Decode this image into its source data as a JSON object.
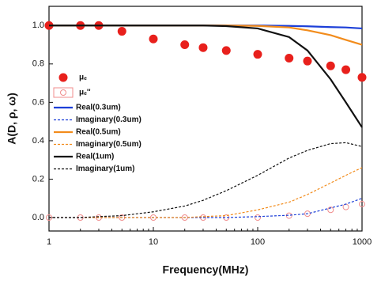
{
  "chart_data": {
    "type": "line",
    "x_label": "Frequency(MHz)",
    "y_label": "A(D, ρ, ω)",
    "log_x": true,
    "xlim": [
      1,
      1000
    ],
    "xticks": [
      1,
      10,
      100,
      1000
    ],
    "ylim": [
      -0.07,
      1.1
    ],
    "yticks": [
      {
        "value": 0,
        "label": "0.0"
      },
      {
        "value": 0.2,
        "label": "0.2"
      },
      {
        "value": 0.4,
        "label": "0.4"
      },
      {
        "value": 0.6,
        "label": "0.6"
      },
      {
        "value": 0.8,
        "label": "0.8"
      },
      {
        "value": 1,
        "label": "1.0"
      }
    ],
    "legend": "left",
    "x": [
      1,
      2,
      3,
      5,
      10,
      20,
      30,
      50,
      100,
      200,
      300,
      500,
      700,
      1000
    ],
    "series": [
      {
        "name": "μₑ",
        "color": "#e8201c",
        "style": "filled-marker",
        "values": [
          1,
          1,
          1,
          0.97,
          0.93,
          0.9,
          0.885,
          0.87,
          0.85,
          0.83,
          0.815,
          0.79,
          0.77,
          0.73
        ]
      },
      {
        "name": "μₑ''",
        "color": "#f08c8c",
        "style": "open-marker",
        "values": [
          0,
          0,
          0,
          0,
          0,
          0,
          0,
          0,
          0,
          0.01,
          0.02,
          0.04,
          0.055,
          0.07
        ]
      },
      {
        "name": "Real(0.3um)",
        "color": "#1c3fd8",
        "style": "solid",
        "values": [
          1,
          1,
          1,
          1,
          1,
          1,
          1,
          1,
          1,
          0.998,
          0.996,
          0.992,
          0.99,
          0.985
        ]
      },
      {
        "name": "Imaginary(0.3um)",
        "color": "#1c3fd8",
        "style": "dashed",
        "values": [
          0,
          0,
          0,
          0,
          0,
          0,
          0,
          0,
          0.005,
          0.012,
          0.02,
          0.05,
          0.07,
          0.1
        ]
      },
      {
        "name": "Real(0.5um)",
        "color": "#f28c1c",
        "style": "solid",
        "values": [
          1,
          1,
          1,
          1,
          1,
          1,
          1,
          1,
          0.998,
          0.99,
          0.975,
          0.95,
          0.925,
          0.9
        ]
      },
      {
        "name": "Imaginary(0.5um)",
        "color": "#f28c1c",
        "style": "dashed",
        "values": [
          0,
          0,
          0,
          0,
          0,
          0,
          0.005,
          0.01,
          0.04,
          0.08,
          0.12,
          0.18,
          0.22,
          0.26
        ]
      },
      {
        "name": "Real(1um)",
        "color": "#111111",
        "style": "solid",
        "values": [
          1,
          1,
          1,
          1,
          1,
          1,
          1,
          0.997,
          0.985,
          0.94,
          0.87,
          0.72,
          0.6,
          0.47
        ]
      },
      {
        "name": "Imaginary(1um)",
        "color": "#111111",
        "style": "dashed",
        "values": [
          0,
          0,
          0.005,
          0.01,
          0.03,
          0.06,
          0.09,
          0.14,
          0.22,
          0.31,
          0.35,
          0.385,
          0.39,
          0.37
        ]
      }
    ]
  }
}
